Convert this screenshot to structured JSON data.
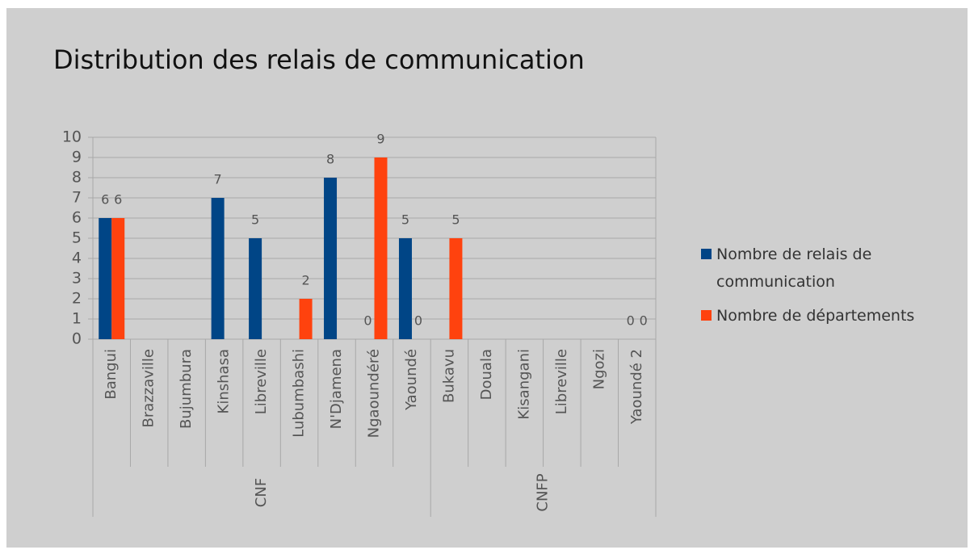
{
  "chart_data": {
    "type": "bar",
    "title": "Distribution des relais de communication",
    "category_groups": [
      {
        "name": "CNF",
        "categories": [
          "Bangui",
          "Brazzaville",
          "Bujumbura",
          "Kinshasa",
          "Libreville",
          "Lubumbashi",
          "N'Djamena",
          "Ngaoundéré",
          "Yaoundé"
        ]
      },
      {
        "name": "CNFP",
        "categories": [
          "Bukavu",
          "Douala",
          "Kisangani",
          "Libreville",
          "Ngozi",
          "Yaoundé 2"
        ]
      }
    ],
    "series": [
      {
        "name": "Nombre de relais de communication",
        "color": "#004586",
        "values": [
          6,
          null,
          null,
          7,
          5,
          null,
          8,
          0,
          5,
          null,
          null,
          null,
          null,
          null,
          0
        ]
      },
      {
        "name": "Nombre de départements",
        "color": "#ff420e",
        "values": [
          6,
          null,
          null,
          null,
          null,
          2,
          null,
          9,
          0,
          5,
          null,
          null,
          null,
          null,
          0
        ]
      }
    ],
    "ylim": [
      0,
      10
    ],
    "yticks": [
      0,
      1,
      2,
      3,
      4,
      5,
      6,
      7,
      8,
      9,
      10
    ],
    "grid": true,
    "legend": "right"
  }
}
